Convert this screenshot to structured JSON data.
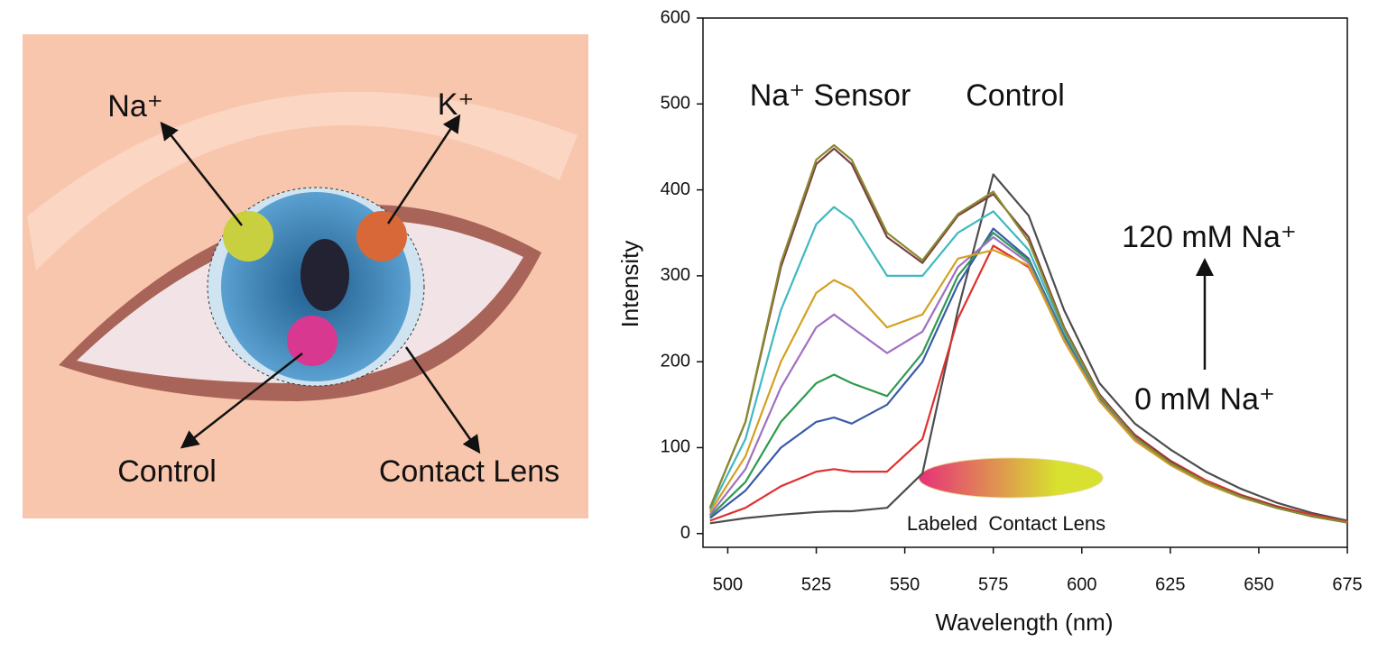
{
  "illustration": {
    "labels": [
      "Na⁺",
      "K⁺",
      "Control",
      "Contact Lens"
    ]
  },
  "chart_data": {
    "type": "line",
    "xlabel": "Wavelength (nm)",
    "ylabel": "Intensity",
    "annotations": [
      "Na⁺ Sensor",
      "Control",
      "120 mM Na⁺",
      "0 mM Na⁺",
      "Labeled  Contact Lens"
    ],
    "x": [
      495,
      505,
      515,
      525,
      530,
      535,
      545,
      555,
      565,
      575,
      585,
      595,
      605,
      615,
      625,
      635,
      645,
      655,
      665,
      675
    ],
    "series": [
      {
        "color": "#4d4d4d",
        "values": [
          12,
          18,
          22,
          25,
          26,
          26,
          30,
          70,
          260,
          418,
          370,
          260,
          175,
          128,
          98,
          72,
          52,
          36,
          24,
          15
        ]
      },
      {
        "color": "#e03030",
        "values": [
          15,
          30,
          55,
          72,
          75,
          72,
          72,
          110,
          250,
          335,
          310,
          230,
          160,
          115,
          85,
          62,
          45,
          32,
          22,
          14
        ]
      },
      {
        "color": "#3a5aa8",
        "values": [
          18,
          50,
          100,
          130,
          135,
          128,
          150,
          200,
          290,
          355,
          320,
          230,
          158,
          112,
          82,
          60,
          43,
          30,
          20,
          13
        ]
      },
      {
        "color": "#2e9a4e",
        "values": [
          20,
          60,
          130,
          175,
          185,
          175,
          160,
          210,
          300,
          350,
          318,
          228,
          156,
          110,
          80,
          58,
          42,
          30,
          20,
          13
        ]
      },
      {
        "color": "#a070c0",
        "values": [
          22,
          75,
          170,
          240,
          255,
          240,
          210,
          235,
          310,
          345,
          315,
          226,
          155,
          110,
          80,
          58,
          42,
          30,
          20,
          13
        ]
      },
      {
        "color": "#d4a020",
        "values": [
          25,
          90,
          200,
          280,
          295,
          285,
          240,
          255,
          320,
          330,
          312,
          224,
          154,
          108,
          80,
          58,
          42,
          30,
          20,
          13
        ]
      },
      {
        "color": "#40b8c0",
        "values": [
          28,
          110,
          260,
          360,
          380,
          365,
          300,
          300,
          350,
          375,
          330,
          235,
          160,
          112,
          82,
          60,
          43,
          30,
          20,
          13
        ]
      },
      {
        "color": "#7a4040",
        "values": [
          30,
          130,
          310,
          430,
          448,
          430,
          345,
          315,
          370,
          395,
          345,
          240,
          162,
          114,
          84,
          60,
          44,
          31,
          20,
          13
        ]
      },
      {
        "color": "#8a8a30",
        "values": [
          30,
          130,
          315,
          435,
          452,
          435,
          350,
          318,
          372,
          398,
          340,
          238,
          160,
          112,
          82,
          60,
          43,
          30,
          20,
          13
        ]
      }
    ],
    "xlim": [
      493,
      675
    ],
    "xticks": [
      500,
      525,
      550,
      575,
      600,
      625,
      650,
      675
    ],
    "ylim": [
      -16,
      600
    ],
    "yticks": [
      0,
      100,
      200,
      300,
      400,
      500,
      600
    ]
  }
}
